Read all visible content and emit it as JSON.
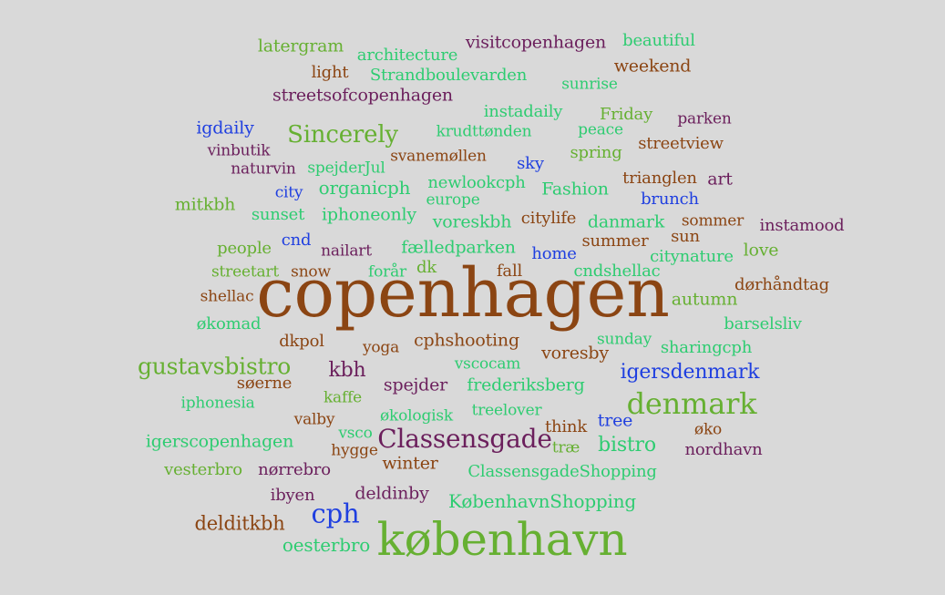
{
  "colors": {
    "background": "#d9d9d9",
    "brown": "#8b4513",
    "purple": "#6b1f5c",
    "green": "#66b032",
    "teal": "#2ecc71",
    "blue": "#1f3fe0"
  },
  "words": [
    {
      "text": "copenhagen",
      "color": "brown"
    },
    {
      "text": "københavn",
      "color": "green"
    },
    {
      "text": "denmark",
      "color": "green"
    },
    {
      "text": "Classensgade",
      "color": "purple"
    },
    {
      "text": "cph",
      "color": "blue"
    },
    {
      "text": "gustavsbistro",
      "color": "green"
    },
    {
      "text": "igersdenmark",
      "color": "blue"
    },
    {
      "text": "Sincerely",
      "color": "green"
    },
    {
      "text": "bistro",
      "color": "teal"
    },
    {
      "text": "kbh",
      "color": "purple"
    },
    {
      "text": "delditkbh",
      "color": "brown"
    },
    {
      "text": "oesterbro",
      "color": "teal"
    },
    {
      "text": "KøbenhavnShopping",
      "color": "teal"
    },
    {
      "text": "ClassensgadeShopping",
      "color": "teal"
    },
    {
      "text": "visitcopenhagen",
      "color": "purple"
    },
    {
      "text": "latergram",
      "color": "green"
    },
    {
      "text": "architecture",
      "color": "teal"
    },
    {
      "text": "beautiful",
      "color": "teal"
    },
    {
      "text": "weekend",
      "color": "brown"
    },
    {
      "text": "light",
      "color": "brown"
    },
    {
      "text": "Strandboulevarden",
      "color": "teal"
    },
    {
      "text": "sunrise",
      "color": "teal"
    },
    {
      "text": "streetsofcopenhagen",
      "color": "purple"
    },
    {
      "text": "instadaily",
      "color": "teal"
    },
    {
      "text": "Friday",
      "color": "green"
    },
    {
      "text": "parken",
      "color": "purple"
    },
    {
      "text": "igdaily",
      "color": "blue"
    },
    {
      "text": "krudttønden",
      "color": "teal"
    },
    {
      "text": "peace",
      "color": "teal"
    },
    {
      "text": "streetview",
      "color": "brown"
    },
    {
      "text": "vinbutik",
      "color": "purple"
    },
    {
      "text": "svanemøllen",
      "color": "brown"
    },
    {
      "text": "spring",
      "color": "green"
    },
    {
      "text": "naturvin",
      "color": "purple"
    },
    {
      "text": "spejderJul",
      "color": "teal"
    },
    {
      "text": "sky",
      "color": "blue"
    },
    {
      "text": "trianglen",
      "color": "brown"
    },
    {
      "text": "art",
      "color": "purple"
    },
    {
      "text": "organicph",
      "color": "teal"
    },
    {
      "text": "newlookcph",
      "color": "teal"
    },
    {
      "text": "Fashion",
      "color": "teal"
    },
    {
      "text": "city",
      "color": "blue"
    },
    {
      "text": "brunch",
      "color": "blue"
    },
    {
      "text": "mitkbh",
      "color": "green"
    },
    {
      "text": "europe",
      "color": "teal"
    },
    {
      "text": "sunset",
      "color": "teal"
    },
    {
      "text": "iphoneonly",
      "color": "teal"
    },
    {
      "text": "voreskbh",
      "color": "teal"
    },
    {
      "text": "citylife",
      "color": "brown"
    },
    {
      "text": "danmark",
      "color": "teal"
    },
    {
      "text": "sommer",
      "color": "brown"
    },
    {
      "text": "instamood",
      "color": "purple"
    },
    {
      "text": "cnd",
      "color": "blue"
    },
    {
      "text": "sun",
      "color": "brown"
    },
    {
      "text": "people",
      "color": "green"
    },
    {
      "text": "nailart",
      "color": "purple"
    },
    {
      "text": "fælledparken",
      "color": "teal"
    },
    {
      "text": "summer",
      "color": "brown"
    },
    {
      "text": "love",
      "color": "green"
    },
    {
      "text": "home",
      "color": "blue"
    },
    {
      "text": "citynature",
      "color": "teal"
    },
    {
      "text": "streetart",
      "color": "green"
    },
    {
      "text": "snow",
      "color": "brown"
    },
    {
      "text": "forår",
      "color": "teal"
    },
    {
      "text": "dk",
      "color": "green"
    },
    {
      "text": "fall",
      "color": "brown"
    },
    {
      "text": "cndshellac",
      "color": "teal"
    },
    {
      "text": "dørhåndtag",
      "color": "brown"
    },
    {
      "text": "shellac",
      "color": "brown"
    },
    {
      "text": "autumn",
      "color": "green"
    },
    {
      "text": "økomad",
      "color": "teal"
    },
    {
      "text": "barselsliv",
      "color": "teal"
    },
    {
      "text": "dkpol",
      "color": "brown"
    },
    {
      "text": "yoga",
      "color": "brown"
    },
    {
      "text": "cphshooting",
      "color": "brown"
    },
    {
      "text": "sunday",
      "color": "teal"
    },
    {
      "text": "sharingcph",
      "color": "teal"
    },
    {
      "text": "voresby",
      "color": "brown"
    },
    {
      "text": "vscocam",
      "color": "teal"
    },
    {
      "text": "søerne",
      "color": "brown"
    },
    {
      "text": "spejder",
      "color": "purple"
    },
    {
      "text": "frederiksberg",
      "color": "teal"
    },
    {
      "text": "iphonesia",
      "color": "teal"
    },
    {
      "text": "kaffe",
      "color": "green"
    },
    {
      "text": "treelover",
      "color": "teal"
    },
    {
      "text": "valby",
      "color": "brown"
    },
    {
      "text": "økologisk",
      "color": "teal"
    },
    {
      "text": "tree",
      "color": "blue"
    },
    {
      "text": "think",
      "color": "brown"
    },
    {
      "text": "øko",
      "color": "brown"
    },
    {
      "text": "vsco",
      "color": "teal"
    },
    {
      "text": "igerscopenhagen",
      "color": "teal"
    },
    {
      "text": "hygge",
      "color": "brown"
    },
    {
      "text": "træ",
      "color": "green"
    },
    {
      "text": "nordhavn",
      "color": "purple"
    },
    {
      "text": "vesterbro",
      "color": "green"
    },
    {
      "text": "nørrebro",
      "color": "purple"
    },
    {
      "text": "winter",
      "color": "brown"
    },
    {
      "text": "ibyen",
      "color": "purple"
    },
    {
      "text": "deldinby",
      "color": "purple"
    }
  ]
}
